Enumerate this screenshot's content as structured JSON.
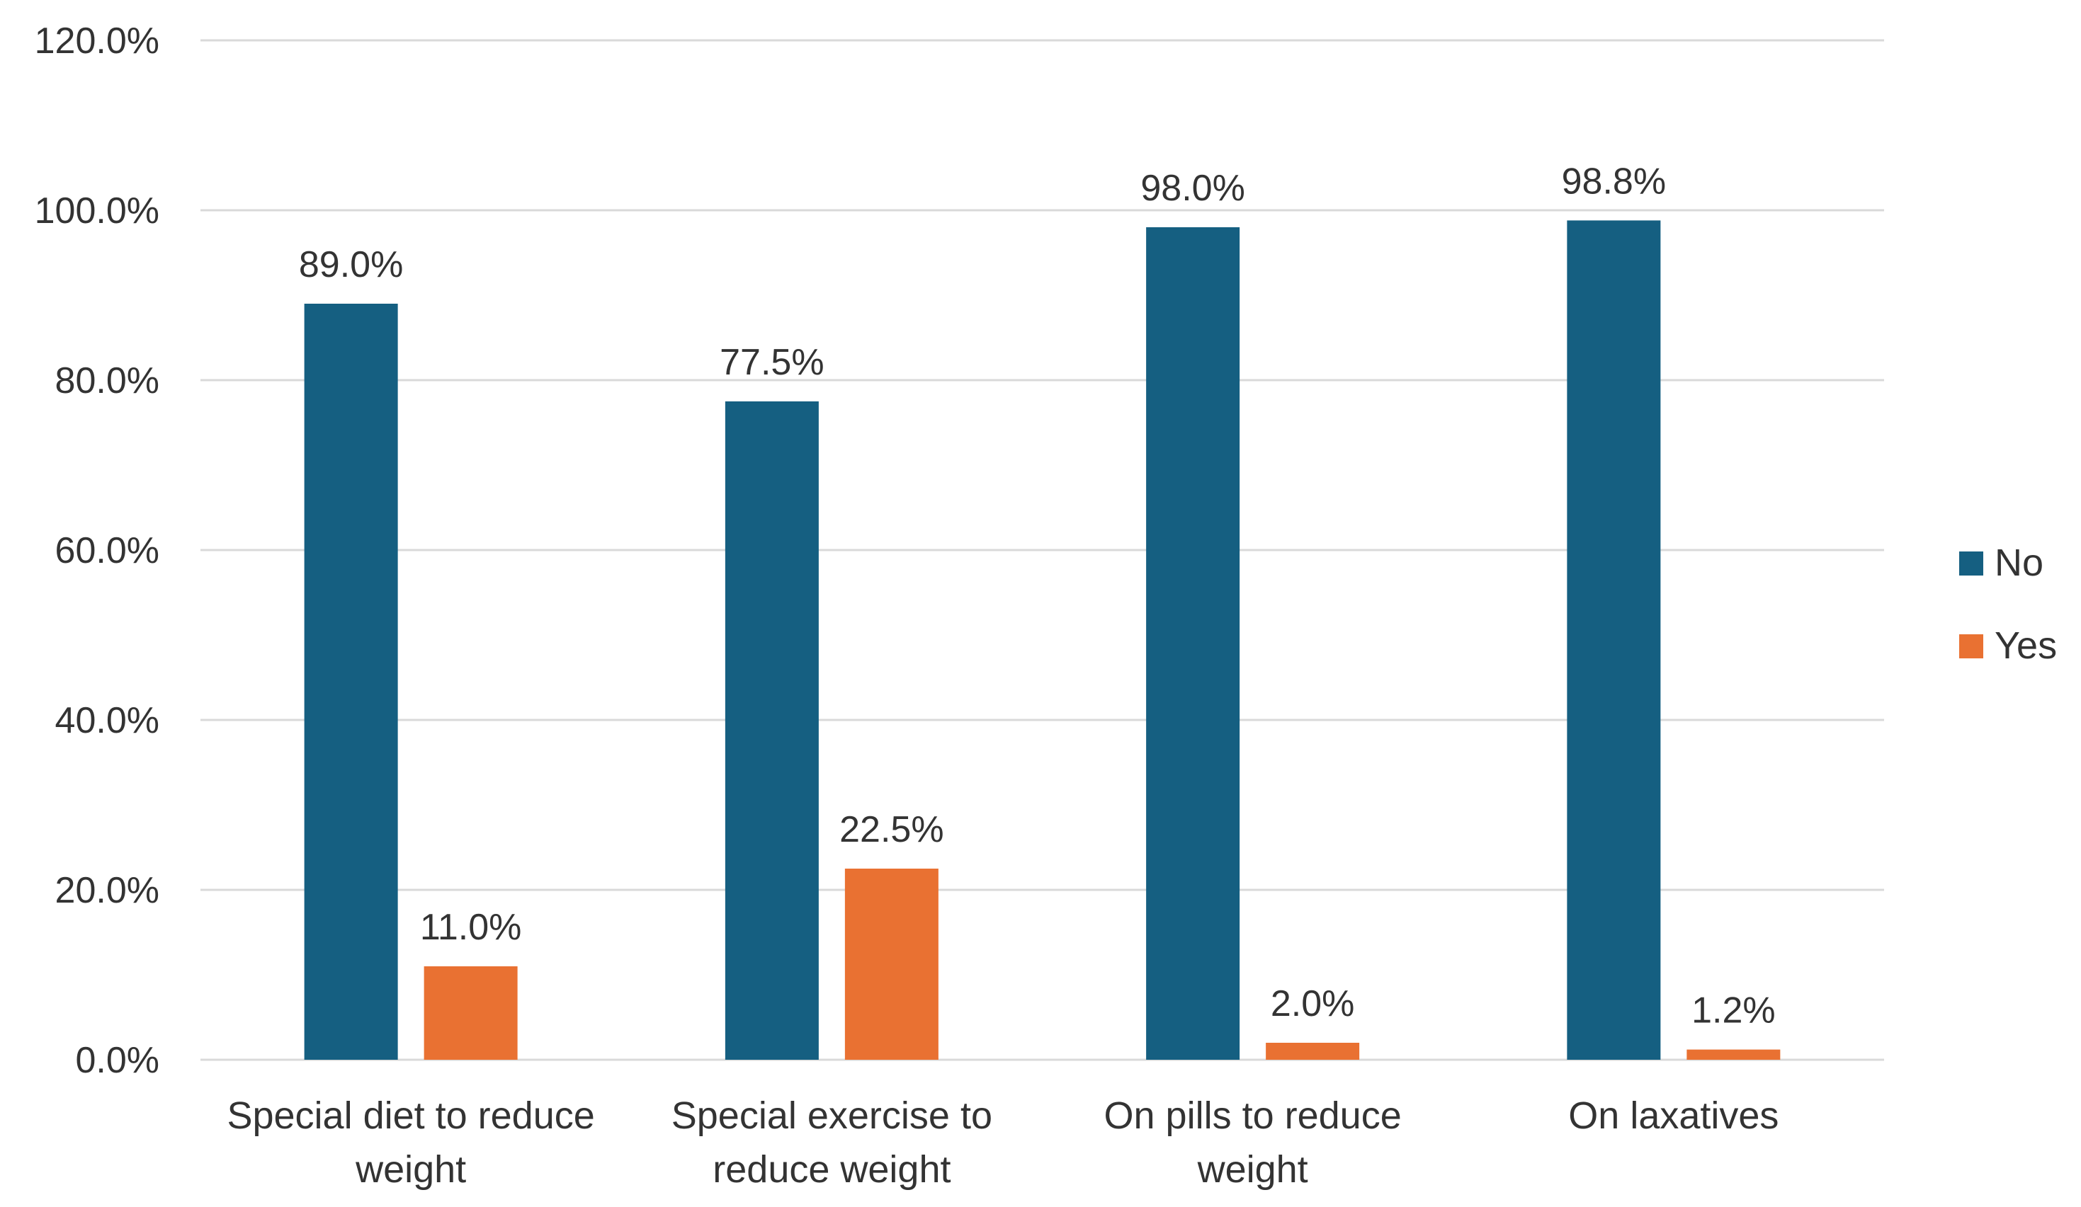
{
  "chart_data": {
    "type": "bar",
    "title": "",
    "xlabel": "",
    "ylabel": "",
    "ylim": [
      0,
      120
    ],
    "yticks": [
      0,
      20,
      40,
      60,
      80,
      100,
      120
    ],
    "ytick_labels": [
      "0.0%",
      "20.0%",
      "40.0%",
      "60.0%",
      "80.0%",
      "100.0%",
      "120.0%"
    ],
    "grid": true,
    "legend_position": "right",
    "categories": [
      [
        "Special diet to reduce",
        "weight"
      ],
      [
        "Special exercise to",
        "reduce weight"
      ],
      [
        "On pills to reduce",
        "weight"
      ],
      [
        "On laxatives"
      ]
    ],
    "series": [
      {
        "name": "No",
        "color": "#155f81",
        "values": [
          89.0,
          77.5,
          98.0,
          98.8
        ],
        "labels": [
          "89.0%",
          "77.5%",
          "98.0%",
          "98.8%"
        ]
      },
      {
        "name": "Yes",
        "color": "#e97132",
        "values": [
          11.0,
          22.5,
          2.0,
          1.2
        ],
        "labels": [
          "11.0%",
          "22.5%",
          "2.0%",
          "1.2%"
        ]
      }
    ]
  }
}
